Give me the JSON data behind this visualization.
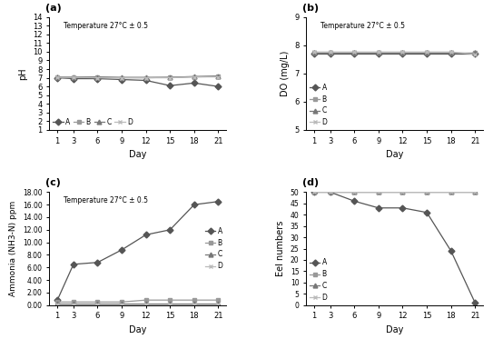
{
  "days": [
    1,
    3,
    6,
    9,
    12,
    15,
    18,
    21
  ],
  "ph": {
    "A": [
      7.0,
      6.9,
      6.9,
      6.8,
      6.7,
      6.1,
      6.4,
      6.0
    ],
    "B": [
      7.05,
      7.05,
      7.05,
      7.0,
      7.0,
      7.05,
      7.1,
      7.15
    ],
    "C": [
      7.1,
      7.1,
      7.1,
      7.05,
      7.05,
      7.05,
      7.15,
      7.2
    ],
    "D": [
      7.05,
      7.05,
      7.0,
      7.0,
      7.0,
      7.0,
      7.1,
      7.1
    ]
  },
  "do": {
    "A": [
      7.7,
      7.7,
      7.7,
      7.7,
      7.7,
      7.7,
      7.7,
      7.7
    ],
    "B": [
      7.72,
      7.72,
      7.72,
      7.72,
      7.72,
      7.72,
      7.72,
      7.72
    ],
    "C": [
      7.74,
      7.74,
      7.74,
      7.74,
      7.74,
      7.74,
      7.74,
      7.74
    ],
    "D": [
      7.76,
      7.76,
      7.76,
      7.76,
      7.76,
      7.76,
      7.76,
      7.68
    ]
  },
  "ammonia": {
    "A": [
      0.8,
      6.5,
      6.8,
      8.8,
      11.2,
      12.0,
      16.0,
      16.5
    ],
    "B": [
      0.5,
      0.5,
      0.5,
      0.5,
      0.8,
      0.8,
      0.8,
      0.8
    ],
    "C": [
      0.3,
      0.3,
      0.3,
      0.3,
      0.3,
      0.3,
      0.3,
      0.3
    ],
    "D": [
      0.15,
      0.15,
      0.15,
      0.15,
      0.15,
      0.15,
      0.15,
      0.15
    ]
  },
  "eels": {
    "A": [
      50,
      50,
      46,
      43,
      43,
      41,
      24,
      1
    ],
    "B": [
      50,
      50,
      50,
      50,
      50,
      50,
      50,
      50
    ],
    "C": [
      50,
      50,
      50,
      50,
      50,
      50,
      50,
      50
    ],
    "D": [
      50,
      50,
      50,
      50,
      50,
      50,
      50,
      50
    ]
  },
  "colors": {
    "A": "#555555",
    "B": "#999999",
    "C": "#777777",
    "D": "#bbbbbb"
  },
  "markers": {
    "A": "D",
    "B": "s",
    "C": "^",
    "D": "x"
  },
  "temp_text": "Temperature 27°C ± 0.5"
}
